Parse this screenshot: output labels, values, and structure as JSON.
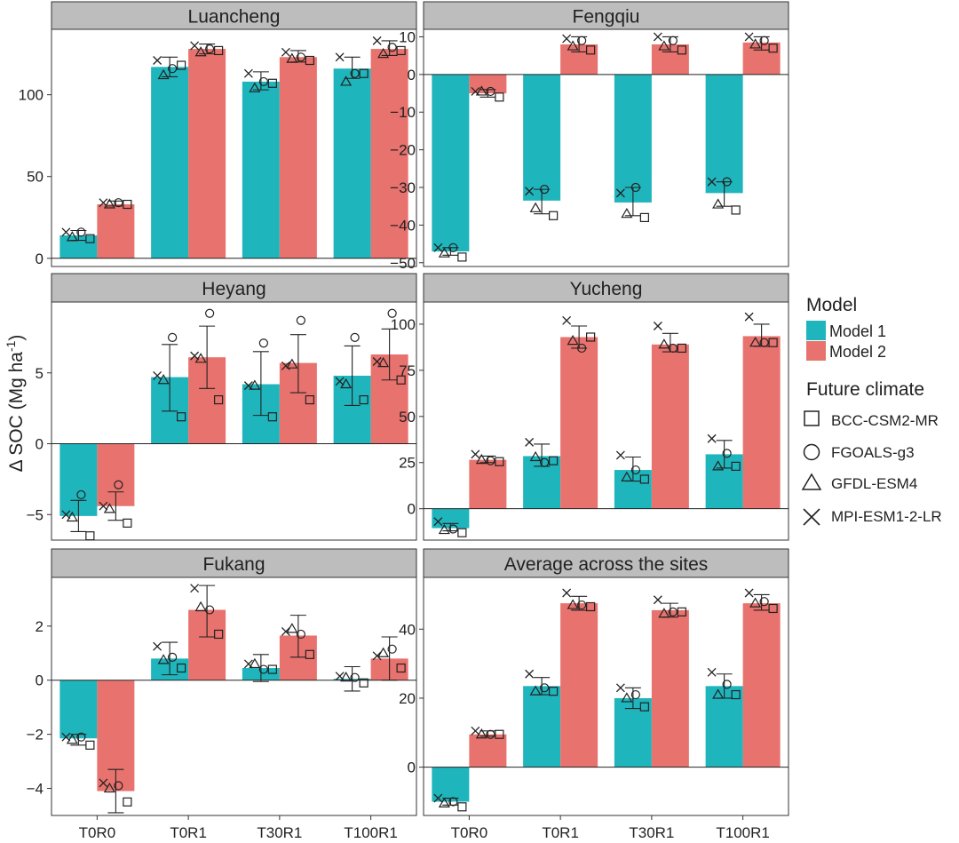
{
  "figure": {
    "ylabel_main": "Δ SOC (Mg ha",
    "ylabel_sup": "-1",
    "ylabel_close": ")",
    "categories": [
      "T0R0",
      "T0R1",
      "T30R1",
      "T100R1"
    ],
    "colors": {
      "model1": "#1fb5bc",
      "model2": "#e8726d",
      "strip": "#bdbdbd"
    },
    "legend": {
      "model_title": "Model",
      "models": [
        {
          "label": "Model 1",
          "color": "#1fb5bc"
        },
        {
          "label": "Model 2",
          "color": "#e8726d"
        }
      ],
      "climate_title": "Future climate",
      "climates": [
        {
          "label": "BCC-CSM2-MR",
          "shape": "square"
        },
        {
          "label": "FGOALS-g3",
          "shape": "circle"
        },
        {
          "label": "GFDL-ESM4",
          "shape": "triangle"
        },
        {
          "label": "MPI-ESM1-2-LR",
          "shape": "cross"
        }
      ]
    }
  },
  "chart_data": [
    {
      "type": "bar",
      "title": "Luancheng",
      "categories": [
        "T0R0",
        "T0R1",
        "T30R1",
        "T100R1"
      ],
      "ylim": [
        -5,
        140
      ],
      "yticks": [
        0,
        50,
        100
      ],
      "xlabels_shown": false,
      "series": [
        {
          "name": "Model 1",
          "values": [
            14,
            117,
            108,
            116
          ],
          "err": [
            [
              11,
              17
            ],
            [
              111,
              123
            ],
            [
              103,
              114
            ],
            [
              110,
              123
            ]
          ],
          "points": [
            [
              12,
              16,
              13,
              16
            ],
            [
              118,
              116,
              112,
              121
            ],
            [
              107,
              108,
              104,
              113
            ],
            [
              113,
              113,
              108,
              123
            ]
          ]
        },
        {
          "name": "Model 2",
          "values": [
            33,
            128,
            123,
            128
          ],
          "err": [
            [
              32,
              35
            ],
            [
              125,
              131
            ],
            [
              120,
              127
            ],
            [
              124,
              133
            ]
          ],
          "points": [
            [
              33,
              34,
              33,
              34
            ],
            [
              127,
              128,
              126,
              130
            ],
            [
              121,
              123,
              122,
              126
            ],
            [
              127,
              129,
              125,
              133
            ]
          ]
        }
      ]
    },
    {
      "type": "bar",
      "title": "Fengqiu",
      "categories": [
        "T0R0",
        "T0R1",
        "T30R1",
        "T100R1"
      ],
      "ylim": [
        -51,
        12
      ],
      "yticks": [
        10,
        0,
        -10,
        -20,
        -30,
        -40,
        -50
      ],
      "xlabels_shown": false,
      "series": [
        {
          "name": "Model 1",
          "values": [
            -47,
            -33.5,
            -34,
            -31.5
          ],
          "err": [
            [
              -48,
              -46
            ],
            [
              -37,
              -30.5
            ],
            [
              -37.5,
              -30
            ],
            [
              -35,
              -28.5
            ]
          ],
          "points": [
            [
              -48.5,
              -46,
              -47.5,
              -46
            ],
            [
              -37.5,
              -30.5,
              -35.5,
              -31
            ],
            [
              -38,
              -30,
              -37,
              -31.5
            ],
            [
              -36,
              -28.5,
              -34.5,
              -28.5
            ]
          ]
        },
        {
          "name": "Model 2",
          "values": [
            -5,
            8,
            8,
            8.5
          ],
          "err": [
            [
              -6,
              -4
            ],
            [
              6,
              10
            ],
            [
              6,
              10
            ],
            [
              6.5,
              10
            ]
          ],
          "points": [
            [
              -6,
              -4.5,
              -4.5,
              -4.5
            ],
            [
              6.5,
              9,
              7.5,
              9.5
            ],
            [
              6.5,
              9,
              7.5,
              10
            ],
            [
              7,
              9,
              8,
              10
            ]
          ]
        }
      ]
    },
    {
      "type": "bar",
      "title": "Heyang",
      "categories": [
        "T0R0",
        "T0R1",
        "T30R1",
        "T100R1"
      ],
      "ylim": [
        -6.8,
        10
      ],
      "yticks": [
        -5,
        0,
        5
      ],
      "xlabels_shown": false,
      "series": [
        {
          "name": "Model 1",
          "values": [
            -5.1,
            4.7,
            4.2,
            4.8
          ],
          "err": [
            [
              -6.2,
              -4.0
            ],
            [
              2.3,
              7.0
            ],
            [
              2.0,
              6.5
            ],
            [
              2.7,
              6.9
            ]
          ],
          "points": [
            [
              -6.5,
              -3.6,
              -5.2,
              -5.0
            ],
            [
              1.9,
              7.5,
              4.5,
              4.8
            ],
            [
              1.9,
              7.1,
              4.1,
              4.1
            ],
            [
              3.1,
              7.5,
              4.2,
              4.4
            ]
          ]
        },
        {
          "name": "Model 2",
          "values": [
            -4.4,
            6.1,
            5.7,
            6.3
          ],
          "err": [
            [
              -5.4,
              -3.4
            ],
            [
              3.9,
              8.3
            ],
            [
              3.6,
              7.7
            ],
            [
              4.5,
              8.1
            ]
          ],
          "points": [
            [
              -5.6,
              -2.9,
              -4.6,
              -4.4
            ],
            [
              3.1,
              9.2,
              6.0,
              6.2
            ],
            [
              3.1,
              8.7,
              5.6,
              5.5
            ],
            [
              4.5,
              9.2,
              5.7,
              5.8
            ]
          ]
        }
      ]
    },
    {
      "type": "bar",
      "title": "Yucheng",
      "categories": [
        "T0R0",
        "T0R1",
        "T30R1",
        "T100R1"
      ],
      "ylim": [
        -17,
        112
      ],
      "yticks": [
        0,
        25,
        50,
        75,
        100
      ],
      "xlabels_shown": false,
      "series": [
        {
          "name": "Model 1",
          "values": [
            -10.5,
            28.5,
            21,
            29.5
          ],
          "err": [
            [
              -12,
              -8
            ],
            [
              23,
              35
            ],
            [
              15,
              28
            ],
            [
              22,
              37
            ]
          ],
          "points": [
            [
              -13,
              -11,
              -11.5,
              -7
            ],
            [
              26,
              25,
              28,
              36
            ],
            [
              16,
              21,
              17,
              29
            ],
            [
              23,
              30,
              23,
              38
            ]
          ]
        },
        {
          "name": "Model 2",
          "values": [
            26.5,
            93,
            89,
            93.5
          ],
          "err": [
            [
              25,
              28.5
            ],
            [
              87,
              99
            ],
            [
              85,
              95
            ],
            [
              88,
              100
            ]
          ],
          "points": [
            [
              25.5,
              26,
              26.5,
              29.5
            ],
            [
              93,
              87,
              91,
              102
            ],
            [
              87,
              87,
              89,
              99
            ],
            [
              90,
              90,
              90,
              104
            ]
          ]
        }
      ]
    },
    {
      "type": "bar",
      "title": "Fukang",
      "categories": [
        "T0R0",
        "T0R1",
        "T30R1",
        "T100R1"
      ],
      "ylim": [
        -5,
        3.8
      ],
      "yticks": [
        -4,
        -2,
        0,
        2
      ],
      "xlabels_shown": true,
      "series": [
        {
          "name": "Model 1",
          "values": [
            -2.15,
            0.8,
            0.45,
            0.05
          ],
          "err": [
            [
              -2.4,
              -2.0
            ],
            [
              0.2,
              1.4
            ],
            [
              -0.05,
              0.95
            ],
            [
              -0.4,
              0.5
            ]
          ],
          "points": [
            [
              -2.4,
              -2.1,
              -2.2,
              -2.1
            ],
            [
              0.45,
              0.85,
              0.75,
              1.25
            ],
            [
              0.4,
              0.4,
              0.6,
              0.6
            ],
            [
              -0.1,
              0.1,
              0.1,
              0.15
            ]
          ]
        },
        {
          "name": "Model 2",
          "values": [
            -4.1,
            2.6,
            1.65,
            0.8
          ],
          "err": [
            [
              -4.9,
              -3.3
            ],
            [
              1.6,
              3.5
            ],
            [
              0.85,
              2.4
            ],
            [
              0.0,
              1.6
            ]
          ],
          "points": [
            [
              -4.5,
              -3.9,
              -4.0,
              -3.8
            ],
            [
              1.7,
              2.6,
              2.7,
              3.4
            ],
            [
              0.95,
              1.7,
              1.9,
              1.8
            ],
            [
              0.45,
              1.15,
              1.0,
              0.9
            ]
          ]
        }
      ]
    },
    {
      "type": "bar",
      "title": "Average across the sites",
      "categories": [
        "T0R0",
        "T0R1",
        "T30R1",
        "T100R1"
      ],
      "ylim": [
        -14,
        55
      ],
      "yticks": [
        0,
        20,
        40
      ],
      "xlabels_shown": true,
      "series": [
        {
          "name": "Model 1",
          "values": [
            -10,
            23.5,
            20,
            23.5
          ],
          "err": [
            [
              -11,
              -9
            ],
            [
              21,
              26
            ],
            [
              17,
              23
            ],
            [
              20,
              27
            ]
          ],
          "points": [
            [
              -11.5,
              -10,
              -10.5,
              -9
            ],
            [
              22,
              23,
              22,
              27
            ],
            [
              17.5,
              21,
              20,
              23
            ],
            [
              21,
              24,
              21,
              27.5
            ]
          ]
        },
        {
          "name": "Model 2",
          "values": [
            9.5,
            47.5,
            45.5,
            47.5
          ],
          "err": [
            [
              9,
              10.5
            ],
            [
              45.5,
              49.5
            ],
            [
              43.5,
              47.5
            ],
            [
              45.5,
              50
            ]
          ],
          "points": [
            [
              9.5,
              9.5,
              9.5,
              10.5
            ],
            [
              46.5,
              47,
              47,
              50.5
            ],
            [
              45,
              45,
              44.5,
              48.5
            ],
            [
              46,
              48,
              47.5,
              50.5
            ]
          ]
        }
      ]
    }
  ]
}
